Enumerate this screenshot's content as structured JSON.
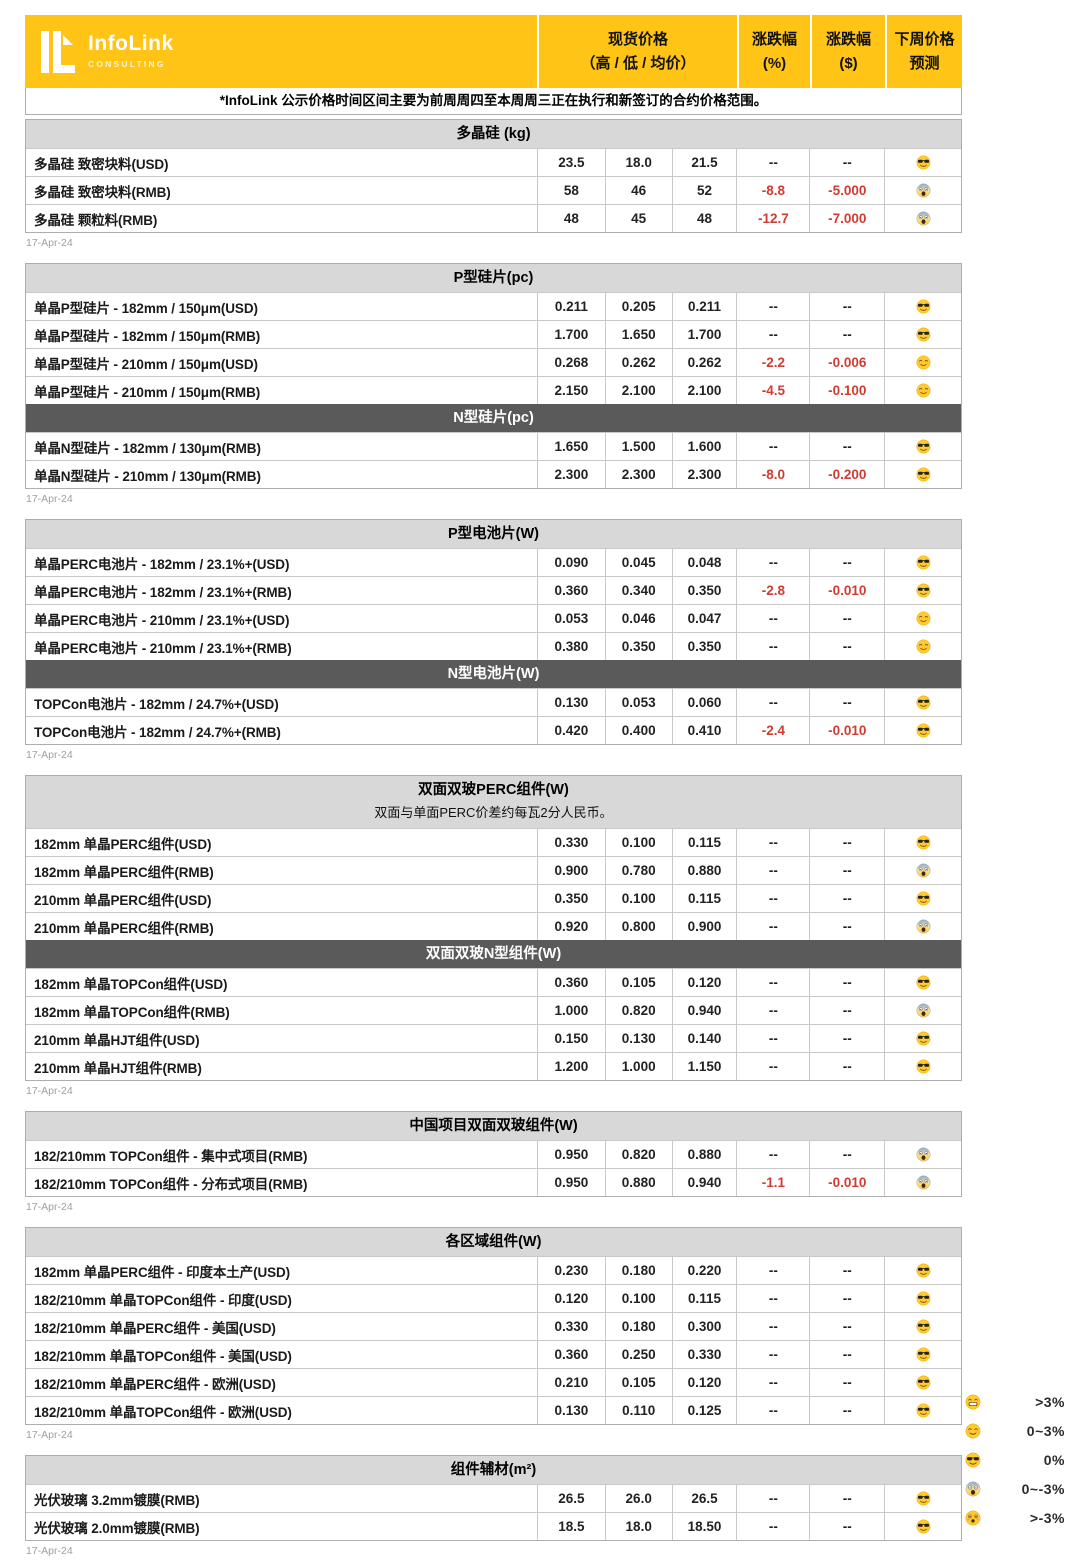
{
  "logo": {
    "brand": "InfoLink",
    "subtitle": "CONSULTING"
  },
  "header": {
    "spot_line1": "现货价格",
    "spot_line2": "（高 / 低 / 均价）",
    "pct_line1": "涨跌幅",
    "pct_line2": "(%)",
    "usd_line1": "涨跌幅",
    "usd_line2": "($)",
    "forecast_line1": "下周价格",
    "forecast_line2": "预测"
  },
  "note": "*InfoLink 公示价格时间区间主要为前周周四至本周周三正在执行和新签订的合约价格范围。",
  "date_label": "17-Apr-24",
  "colors": {
    "brand_yellow": "#FFC415",
    "dark_header": "#5A5A5A",
    "light_header": "#D8D8D8",
    "negative_red": "#D23B31"
  },
  "emoji_map": {
    "grin": "😁",
    "smile": "😊",
    "sunglasses": "😎",
    "scream": "😱",
    "shocked": "😵"
  },
  "legend": [
    {
      "emoji": "grin",
      "label": ">3%"
    },
    {
      "emoji": "smile",
      "label": "0~3%"
    },
    {
      "emoji": "sunglasses",
      "label": "0%"
    },
    {
      "emoji": "scream",
      "label": "0~-3%"
    },
    {
      "emoji": "shocked",
      "label": ">-3%"
    }
  ],
  "sections": [
    {
      "blocks": [
        {
          "title": "多晶硅 (kg)",
          "style": "light",
          "rows": [
            {
              "name": "多晶硅 致密块料(USD)",
              "high": "23.5",
              "low": "18.0",
              "avg": "21.5",
              "pct": "--",
              "usd": "--",
              "forecast": "sunglasses"
            },
            {
              "name": "多晶硅 致密块料(RMB)",
              "high": "58",
              "low": "46",
              "avg": "52",
              "pct": "-8.8",
              "usd": "-5.000",
              "forecast": "scream"
            },
            {
              "name": "多晶硅 颗粒料(RMB)",
              "high": "48",
              "low": "45",
              "avg": "48",
              "pct": "-12.7",
              "usd": "-7.000",
              "forecast": "scream"
            }
          ]
        }
      ]
    },
    {
      "blocks": [
        {
          "title": "P型硅片(pc)",
          "style": "light",
          "rows": [
            {
              "name": "单晶P型硅片 - 182mm / 150μm(USD)",
              "high": "0.211",
              "low": "0.205",
              "avg": "0.211",
              "pct": "--",
              "usd": "--",
              "forecast": "sunglasses"
            },
            {
              "name": "单晶P型硅片 - 182mm / 150μm(RMB)",
              "high": "1.700",
              "low": "1.650",
              "avg": "1.700",
              "pct": "--",
              "usd": "--",
              "forecast": "sunglasses"
            },
            {
              "name": "单晶P型硅片 - 210mm / 150μm(USD)",
              "high": "0.268",
              "low": "0.262",
              "avg": "0.262",
              "pct": "-2.2",
              "usd": "-0.006",
              "forecast": "smile"
            },
            {
              "name": "单晶P型硅片 - 210mm / 150μm(RMB)",
              "high": "2.150",
              "low": "2.100",
              "avg": "2.100",
              "pct": "-4.5",
              "usd": "-0.100",
              "forecast": "smile"
            }
          ]
        },
        {
          "title": "N型硅片(pc)",
          "style": "dark",
          "rows": [
            {
              "name": "单晶N型硅片 - 182mm / 130μm(RMB)",
              "high": "1.650",
              "low": "1.500",
              "avg": "1.600",
              "pct": "--",
              "usd": "--",
              "forecast": "sunglasses"
            },
            {
              "name": "单晶N型硅片 - 210mm / 130μm(RMB)",
              "high": "2.300",
              "low": "2.300",
              "avg": "2.300",
              "pct": "-8.0",
              "usd": "-0.200",
              "forecast": "sunglasses"
            }
          ]
        }
      ]
    },
    {
      "blocks": [
        {
          "title": "P型电池片(W)",
          "style": "light",
          "rows": [
            {
              "name": "单晶PERC电池片 - 182mm / 23.1%+(USD)",
              "high": "0.090",
              "low": "0.045",
              "avg": "0.048",
              "pct": "--",
              "usd": "--",
              "forecast": "sunglasses"
            },
            {
              "name": "单晶PERC电池片 - 182mm / 23.1%+(RMB)",
              "high": "0.360",
              "low": "0.340",
              "avg": "0.350",
              "pct": "-2.8",
              "usd": "-0.010",
              "forecast": "sunglasses"
            },
            {
              "name": "单晶PERC电池片 - 210mm / 23.1%+(USD)",
              "high": "0.053",
              "low": "0.046",
              "avg": "0.047",
              "pct": "--",
              "usd": "--",
              "forecast": "smile"
            },
            {
              "name": "单晶PERC电池片 - 210mm / 23.1%+(RMB)",
              "high": "0.380",
              "low": "0.350",
              "avg": "0.350",
              "pct": "--",
              "usd": "--",
              "forecast": "smile"
            }
          ]
        },
        {
          "title": "N型电池片(W)",
          "style": "dark",
          "rows": [
            {
              "name": "TOPCon电池片 - 182mm / 24.7%+(USD)",
              "high": "0.130",
              "low": "0.053",
              "avg": "0.060",
              "pct": "--",
              "usd": "--",
              "forecast": "sunglasses"
            },
            {
              "name": "TOPCon电池片 - 182mm / 24.7%+(RMB)",
              "high": "0.420",
              "low": "0.400",
              "avg": "0.410",
              "pct": "-2.4",
              "usd": "-0.010",
              "forecast": "sunglasses"
            }
          ]
        }
      ]
    },
    {
      "blocks": [
        {
          "title": "双面双玻PERC组件(W)",
          "style": "light",
          "subnote": "双面与单面PERC价差约每瓦2分人民币。",
          "rows": [
            {
              "name": "182mm 单晶PERC组件(USD)",
              "high": "0.330",
              "low": "0.100",
              "avg": "0.115",
              "pct": "--",
              "usd": "--",
              "forecast": "sunglasses"
            },
            {
              "name": "182mm 单晶PERC组件(RMB)",
              "high": "0.900",
              "low": "0.780",
              "avg": "0.880",
              "pct": "--",
              "usd": "--",
              "forecast": "scream"
            },
            {
              "name": "210mm 单晶PERC组件(USD)",
              "high": "0.350",
              "low": "0.100",
              "avg": "0.115",
              "pct": "--",
              "usd": "--",
              "forecast": "sunglasses"
            },
            {
              "name": "210mm 单晶PERC组件(RMB)",
              "high": "0.920",
              "low": "0.800",
              "avg": "0.900",
              "pct": "--",
              "usd": "--",
              "forecast": "scream"
            }
          ]
        },
        {
          "title": "双面双玻N型组件(W)",
          "style": "dark",
          "rows": [
            {
              "name": "182mm 单晶TOPCon组件(USD)",
              "high": "0.360",
              "low": "0.105",
              "avg": "0.120",
              "pct": "--",
              "usd": "--",
              "forecast": "sunglasses"
            },
            {
              "name": "182mm 单晶TOPCon组件(RMB)",
              "high": "1.000",
              "low": "0.820",
              "avg": "0.940",
              "pct": "--",
              "usd": "--",
              "forecast": "scream"
            },
            {
              "name": "210mm 单晶HJT组件(USD)",
              "high": "0.150",
              "low": "0.130",
              "avg": "0.140",
              "pct": "--",
              "usd": "--",
              "forecast": "sunglasses"
            },
            {
              "name": "210mm 单晶HJT组件(RMB)",
              "high": "1.200",
              "low": "1.000",
              "avg": "1.150",
              "pct": "--",
              "usd": "--",
              "forecast": "sunglasses"
            }
          ]
        }
      ]
    },
    {
      "blocks": [
        {
          "title": "中国项目双面双玻组件(W)",
          "style": "light",
          "rows": [
            {
              "name": "182/210mm TOPCon组件 - 集中式项目(RMB)",
              "high": "0.950",
              "low": "0.820",
              "avg": "0.880",
              "pct": "--",
              "usd": "--",
              "forecast": "scream"
            },
            {
              "name": "182/210mm TOPCon组件 - 分布式项目(RMB)",
              "high": "0.950",
              "low": "0.880",
              "avg": "0.940",
              "pct": "-1.1",
              "usd": "-0.010",
              "forecast": "scream"
            }
          ]
        }
      ]
    },
    {
      "blocks": [
        {
          "title": "各区域组件(W)",
          "style": "light",
          "rows": [
            {
              "name": "182mm 单晶PERC组件 - 印度本土产(USD)",
              "high": "0.230",
              "low": "0.180",
              "avg": "0.220",
              "pct": "--",
              "usd": "--",
              "forecast": "sunglasses"
            },
            {
              "name": "182/210mm 单晶TOPCon组件 - 印度(USD)",
              "high": "0.120",
              "low": "0.100",
              "avg": "0.115",
              "pct": "--",
              "usd": "--",
              "forecast": "sunglasses"
            },
            {
              "name": "182/210mm 单晶PERC组件 - 美国(USD)",
              "high": "0.330",
              "low": "0.180",
              "avg": "0.300",
              "pct": "--",
              "usd": "--",
              "forecast": "sunglasses"
            },
            {
              "name": "182/210mm 单晶TOPCon组件 - 美国(USD)",
              "high": "0.360",
              "low": "0.250",
              "avg": "0.330",
              "pct": "--",
              "usd": "--",
              "forecast": "sunglasses"
            },
            {
              "name": "182/210mm 单晶PERC组件 - 欧洲(USD)",
              "high": "0.210",
              "low": "0.105",
              "avg": "0.120",
              "pct": "--",
              "usd": "--",
              "forecast": "sunglasses"
            },
            {
              "name": "182/210mm 单晶TOPCon组件 - 欧洲(USD)",
              "high": "0.130",
              "low": "0.110",
              "avg": "0.125",
              "pct": "--",
              "usd": "--",
              "forecast": "sunglasses"
            }
          ]
        }
      ]
    },
    {
      "blocks": [
        {
          "title": "组件辅材(m²)",
          "style": "light",
          "rows": [
            {
              "name": "光伏玻璃 3.2mm镀膜(RMB)",
              "high": "26.5",
              "low": "26.0",
              "avg": "26.5",
              "pct": "--",
              "usd": "--",
              "forecast": "sunglasses"
            },
            {
              "name": "光伏玻璃 2.0mm镀膜(RMB)",
              "high": "18.5",
              "low": "18.0",
              "avg": "18.50",
              "pct": "--",
              "usd": "--",
              "forecast": "sunglasses"
            }
          ]
        }
      ]
    }
  ]
}
